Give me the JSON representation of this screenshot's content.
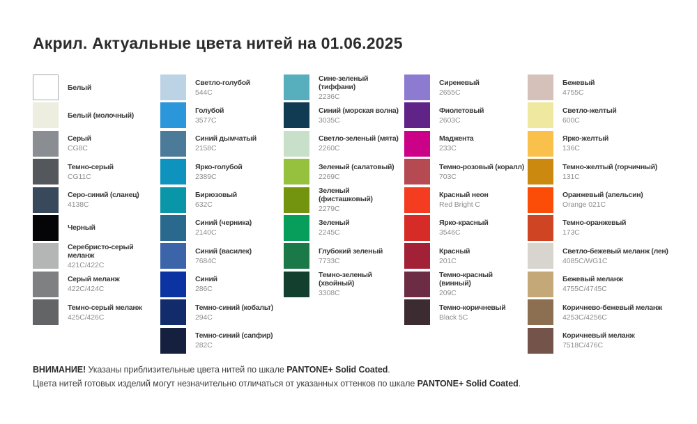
{
  "page": {
    "title": "Акрил. Актуальные цвета нитей на 01.06.2025"
  },
  "columns": [
    {
      "items": [
        {
          "name": "Белый",
          "code": "",
          "color": "#ffffff",
          "border": true
        },
        {
          "name": "Белый (молочный)",
          "code": "",
          "color": "#edeee0",
          "border": false
        },
        {
          "name": "Серый",
          "code": "CG8C",
          "color": "#8a8e92",
          "border": false
        },
        {
          "name": "Темно-серый",
          "code": "CG11C",
          "color": "#54575c",
          "border": false
        },
        {
          "name": "Серо-синий (сланец)",
          "code": "4138C",
          "color": "#37495b",
          "border": false
        },
        {
          "name": "Черный",
          "code": "",
          "color": "#050507",
          "border": false
        },
        {
          "name": "Серебристо-серый меланж",
          "code": "421C/422C",
          "color": "#b4b6b6",
          "border": false
        },
        {
          "name": "Серый меланж",
          "code": "422C/424C",
          "color": "#7e8082",
          "border": false
        },
        {
          "name": "Темно-серый меланж",
          "code": "425C/426C",
          "color": "#626466",
          "border": false
        }
      ]
    },
    {
      "items": [
        {
          "name": "Светло-голубой",
          "code": "544C",
          "color": "#bcd3e6",
          "border": false
        },
        {
          "name": "Голубой",
          "code": "3577C",
          "color": "#2b96da",
          "border": false
        },
        {
          "name": "Синий дымчатый",
          "code": "2158C",
          "color": "#4c7a99",
          "border": false
        },
        {
          "name": "Ярко-голубой",
          "code": "2389C",
          "color": "#0e93bf",
          "border": false
        },
        {
          "name": "Бирюзовый",
          "code": "632C",
          "color": "#0a96a9",
          "border": false
        },
        {
          "name": "Синий (черника)",
          "code": "2140C",
          "color": "#2a698e",
          "border": false
        },
        {
          "name": "Синий (василек)",
          "code": "7684C",
          "color": "#3c64a9",
          "border": false
        },
        {
          "name": "Синий",
          "code": "286C",
          "color": "#0b34a2",
          "border": false
        },
        {
          "name": "Темно-синий (кобальт)",
          "code": "294C",
          "color": "#122c6b",
          "border": false
        },
        {
          "name": "Темно-синий (сапфир)",
          "code": "282C",
          "color": "#15203f",
          "border": false
        }
      ]
    },
    {
      "items": [
        {
          "name": "Сине-зеленый (тиффани)",
          "code": "2236C",
          "color": "#57aebd",
          "border": false
        },
        {
          "name": "Синий (морская волна)",
          "code": "3035C",
          "color": "#113b52",
          "border": false
        },
        {
          "name": "Светло-зеленый (мята)",
          "code": "2260C",
          "color": "#c8e0ca",
          "border": false
        },
        {
          "name": "Зеленый (салатовый)",
          "code": "2269C",
          "color": "#95c13f",
          "border": false
        },
        {
          "name": "Зеленый (фисташковый)",
          "code": "2279C",
          "color": "#73940f",
          "border": false
        },
        {
          "name": "Зеленый",
          "code": "2245C",
          "color": "#079e5b",
          "border": false
        },
        {
          "name": "Глубокий зеленый",
          "code": "7733C",
          "color": "#1b7847",
          "border": false
        },
        {
          "name": "Темно-зеленый (хвойный)",
          "code": "3308C",
          "color": "#133f2e",
          "border": false
        }
      ]
    },
    {
      "items": [
        {
          "name": "Сиреневый",
          "code": "2655C",
          "color": "#8c7bd1",
          "border": false
        },
        {
          "name": "Фиолетовый",
          "code": "2603C",
          "color": "#602489",
          "border": false
        },
        {
          "name": "Маджента",
          "code": "233C",
          "color": "#cb0187",
          "border": false
        },
        {
          "name": "Темно-розовый (коралл)",
          "code": "703C",
          "color": "#b64a53",
          "border": false
        },
        {
          "name": "Красный неон",
          "code": "Red Bright C",
          "color": "#f43d20",
          "border": false
        },
        {
          "name": "Ярко-красный",
          "code": "3546C",
          "color": "#d62b27",
          "border": false
        },
        {
          "name": "Красный",
          "code": "201C",
          "color": "#a22136",
          "border": false
        },
        {
          "name": "Темно-красный (винный)",
          "code": "209C",
          "color": "#6c2c44",
          "border": false
        },
        {
          "name": "Темно-коричневый",
          "code": "Black 5C",
          "color": "#3c2b31",
          "border": false
        }
      ]
    },
    {
      "items": [
        {
          "name": "Бежевый",
          "code": "4755C",
          "color": "#d5c1b9",
          "border": false
        },
        {
          "name": "Светло-желтый",
          "code": "600C",
          "color": "#eee8a0",
          "border": false
        },
        {
          "name": "Ярко-желтый",
          "code": "136C",
          "color": "#f9c04b",
          "border": false
        },
        {
          "name": "Темно-желтый (горчичный)",
          "code": "131C",
          "color": "#cb8a0f",
          "border": false
        },
        {
          "name": "Оранжевый (апельсин)",
          "code": "Orange 021C",
          "color": "#fb4d07",
          "border": false
        },
        {
          "name": "Темно-оранжевый",
          "code": "173C",
          "color": "#cf4423",
          "border": false
        },
        {
          "name": "Светло-бежевый меланж (лен)",
          "code": "4085C/WG1C",
          "color": "#d8d5cf",
          "border": false
        },
        {
          "name": "Бежевый меланж",
          "code": "4755C/4745C",
          "color": "#c5a878",
          "border": false
        },
        {
          "name": "Коричнево-бежевый меланж",
          "code": "4253C/4256C",
          "color": "#8b6f50",
          "border": false
        },
        {
          "name": "Коричневый меланж",
          "code": "7518C/476C",
          "color": "#74534b",
          "border": false
        }
      ]
    }
  ],
  "footer": {
    "line1": [
      {
        "text": "ВНИМАНИЕ!",
        "bold": true
      },
      {
        "text": " Указаны приблизительные цвета нитей по шкале ",
        "bold": false
      },
      {
        "text": "PANTONE+ Solid Coated",
        "bold": true
      },
      {
        "text": ".",
        "bold": false
      }
    ],
    "line2": [
      {
        "text": "Цвета нитей готовых изделий могут незначительно отличаться от указанных оттенков по шкале ",
        "bold": false
      },
      {
        "text": "PANTONE+ Solid Coated",
        "bold": true
      },
      {
        "text": ".",
        "bold": false
      }
    ]
  }
}
